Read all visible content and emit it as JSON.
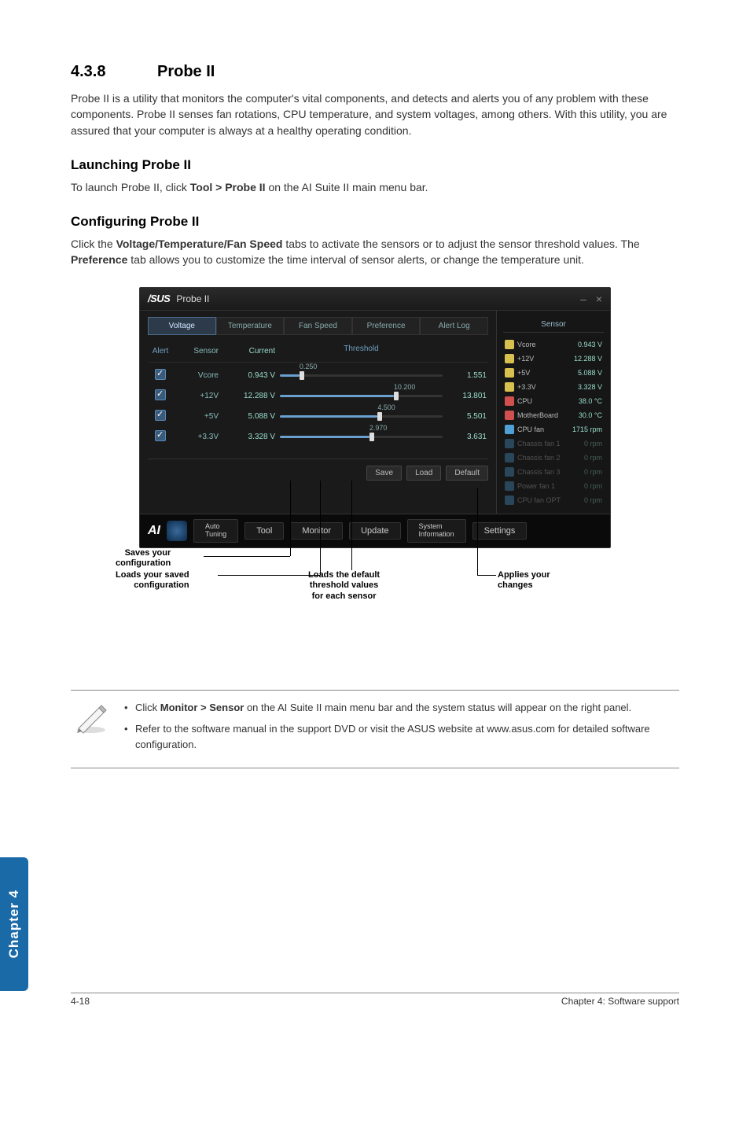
{
  "section": {
    "number": "4.3.8",
    "title": "Probe II"
  },
  "intro": "Probe II is a utility that monitors the computer's vital components, and detects and alerts you of any problem with these components. Probe II senses fan rotations, CPU temperature, and system voltages, among others. With this utility, you are assured that your computer is always at a healthy operating condition.",
  "launch": {
    "heading": "Launching Probe II",
    "text_pre": "To launch Probe II, click ",
    "text_bold": "Tool > Probe II",
    "text_post": " on the AI Suite II main menu bar."
  },
  "config": {
    "heading": "Configuring Probe II",
    "text_pre": "Click the ",
    "text_bold1": "Voltage/Temperature/Fan Speed",
    "text_mid": " tabs to activate the sensors or to adjust the sensor threshold values. The ",
    "text_bold2": "Preference",
    "text_post": " tab allows you to customize the time interval of sensor alerts, or change the temperature unit."
  },
  "window": {
    "logo": "/SUS",
    "title": "Probe II",
    "minimize": "–",
    "close": "×",
    "tabs": [
      "Voltage",
      "Temperature",
      "Fan Speed",
      "Preference",
      "Alert Log"
    ],
    "active_tab": 0,
    "columns": {
      "alert": "Alert",
      "sensor": "Sensor",
      "current": "Current",
      "threshold": "Threshold"
    },
    "rows": [
      {
        "sensor": "Vcore",
        "current": "0.943 V",
        "slider_label": "0.250",
        "slider_pct": 12,
        "threshold": "1.551"
      },
      {
        "sensor": "+12V",
        "current": "12.288 V",
        "slider_label": "10.200",
        "slider_pct": 70,
        "threshold": "13.801"
      },
      {
        "sensor": "+5V",
        "current": "5.088 V",
        "slider_label": "4.500",
        "slider_pct": 60,
        "threshold": "5.501"
      },
      {
        "sensor": "+3.3V",
        "current": "3.328 V",
        "slider_label": "2.970",
        "slider_pct": 55,
        "threshold": "3.631"
      }
    ],
    "buttons": {
      "save": "Save",
      "load": "Load",
      "default": "Default"
    },
    "sidebar": {
      "header": "Sensor",
      "items": [
        {
          "icon_color": "#d8c050",
          "name": "Vcore",
          "value": "0.943 V",
          "dim": false
        },
        {
          "icon_color": "#d8c050",
          "name": "+12V",
          "value": "12.288 V",
          "dim": false
        },
        {
          "icon_color": "#d8c050",
          "name": "+5V",
          "value": "5.088 V",
          "dim": false
        },
        {
          "icon_color": "#d8c050",
          "name": "+3.3V",
          "value": "3.328 V",
          "dim": false
        },
        {
          "icon_color": "#d05050",
          "name": "CPU",
          "value": "38.0 °C",
          "dim": false
        },
        {
          "icon_color": "#d05050",
          "name": "MotherBoard",
          "value": "30.0 °C",
          "dim": false
        },
        {
          "icon_color": "#50a0d8",
          "name": "CPU fan",
          "value": "1715 rpm",
          "dim": false
        },
        {
          "icon_color": "#50a0d8",
          "name": "Chassis fan 1",
          "value": "0 rpm",
          "dim": true
        },
        {
          "icon_color": "#50a0d8",
          "name": "Chassis fan 2",
          "value": "0 rpm",
          "dim": true
        },
        {
          "icon_color": "#50a0d8",
          "name": "Chassis fan 3",
          "value": "0 rpm",
          "dim": true
        },
        {
          "icon_color": "#50a0d8",
          "name": "Power fan 1",
          "value": "0 rpm",
          "dim": true
        },
        {
          "icon_color": "#50a0d8",
          "name": "CPU fan OPT",
          "value": "0 rpm",
          "dim": true
        }
      ]
    },
    "appbar": {
      "logo": "AI",
      "tuning": "Auto\nTuning",
      "buttons": [
        "Tool",
        "Monitor",
        "Update",
        "System\nInformation",
        "Settings"
      ]
    }
  },
  "callouts": {
    "saves": "Saves your\nconfiguration",
    "loads_saved": "Loads your saved\nconfiguration",
    "loads_default": "Loads the default\nthreshold values\nfor each sensor",
    "applies": "Applies your\nchanges"
  },
  "notes": {
    "item1_pre": "Click ",
    "item1_bold": "Monitor > Sensor",
    "item1_post": " on the AI Suite II main menu bar and the system status will appear on the right panel.",
    "item2": "Refer to the software manual in the support DVD or visit the ASUS website at www.asus.com for detailed software configuration."
  },
  "side_tab": "Chapter 4",
  "footer": {
    "left": "4-18",
    "right": "Chapter 4: Software support"
  }
}
